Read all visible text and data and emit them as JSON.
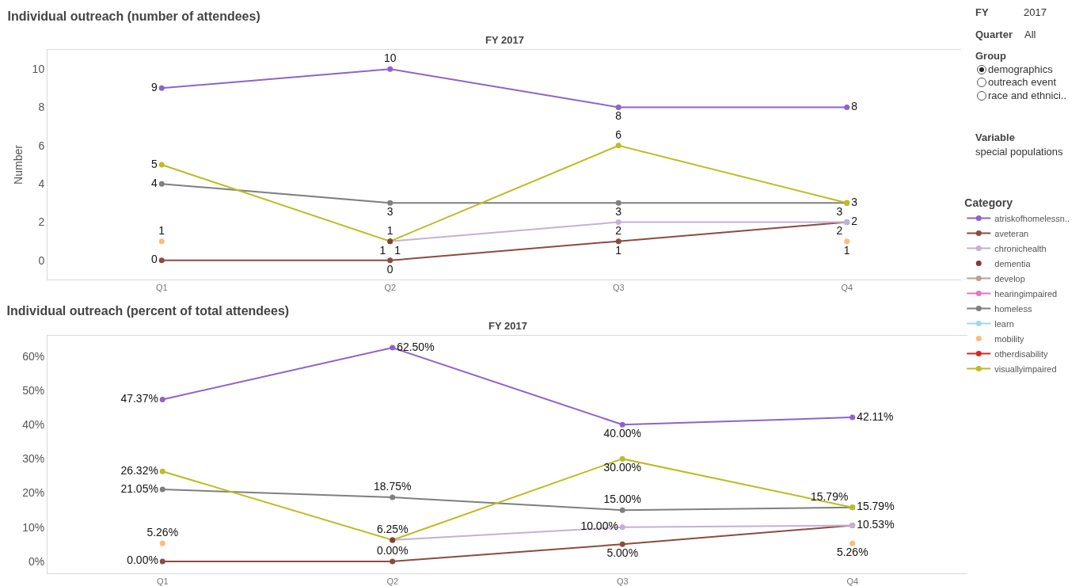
{
  "chart_data": [
    {
      "type": "line",
      "title": "Individual outreach (number of attendees)",
      "subtitle": "FY 2017",
      "ylabel": "Number",
      "legend_title": "Category",
      "categories": [
        "Q1",
        "Q2",
        "Q3",
        "Q4"
      ],
      "ylim": [
        -1,
        11
      ],
      "yticks": [
        0,
        2,
        4,
        6,
        8,
        10
      ],
      "grid": false,
      "legend": "right",
      "marker": "circle",
      "line_style": "solid",
      "data_labels": true,
      "series": [
        {
          "name": "atriskofhomelessn..",
          "color": "#8e63c9",
          "values": [
            9,
            10,
            8,
            8
          ]
        },
        {
          "name": "aveteran",
          "color": "#8c4b3f",
          "values": [
            0,
            0,
            1,
            2
          ]
        },
        {
          "name": "chronichealth",
          "color": "#c5b0d5",
          "values": [
            null,
            1,
            2,
            2
          ]
        },
        {
          "name": "dementia",
          "type": "scatter",
          "color": "#843c39",
          "values": [
            null,
            1,
            null,
            null
          ]
        },
        {
          "name": "develop",
          "color": "#c49c94",
          "values": [
            null,
            null,
            null,
            null
          ]
        },
        {
          "name": "hearingimpaired",
          "color": "#e377c2",
          "values": [
            null,
            null,
            null,
            null
          ]
        },
        {
          "name": "homeless",
          "color": "#7f7f7f",
          "values": [
            4,
            3,
            3,
            3
          ]
        },
        {
          "name": "learn",
          "color": "#9edae5",
          "values": [
            null,
            null,
            null,
            null
          ]
        },
        {
          "name": "mobility",
          "type": "scatter",
          "color": "#ffbb78",
          "values": [
            1,
            null,
            null,
            1
          ]
        },
        {
          "name": "otherdisability",
          "color": "#d62728",
          "values": [
            null,
            null,
            null,
            null
          ]
        },
        {
          "name": "visuallyimpaired",
          "color": "#bcbd22",
          "values": [
            5,
            1,
            6,
            3
          ]
        }
      ]
    },
    {
      "type": "line",
      "title": "Individual outreach (percent of total attendees)",
      "subtitle": "FY 2017",
      "categories": [
        "Q1",
        "Q2",
        "Q3",
        "Q4"
      ],
      "ylim": [
        -3.5,
        66
      ],
      "yticks": [
        {
          "value": 0,
          "label": "0%"
        },
        {
          "value": 10,
          "label": "10%"
        },
        {
          "value": 20,
          "label": "20%"
        },
        {
          "value": 30,
          "label": "30%"
        },
        {
          "value": 40,
          "label": "40%"
        },
        {
          "value": 50,
          "label": "50%"
        },
        {
          "value": 60,
          "label": "60%"
        }
      ],
      "grid": false,
      "marker": "circle",
      "line_style": "solid",
      "series": [
        {
          "color": "#8e63c9",
          "values": [
            47.37,
            62.5,
            40,
            42.11
          ],
          "value_labels": [
            "47.37%",
            "62.50%",
            "40.00%",
            "42.11%"
          ]
        },
        {
          "color": "#8c4b3f",
          "values": [
            0,
            0,
            5,
            10.53
          ],
          "value_labels": [
            "0.00%",
            "0.00%",
            "5.00%",
            "10.53%"
          ]
        },
        {
          "color": "#c5b0d5",
          "values": [
            null,
            6.25,
            10,
            10.53
          ],
          "value_labels": [
            null,
            null,
            "10.00%",
            null
          ]
        },
        {
          "type": "scatter",
          "color": "#843c39",
          "values": [
            null,
            6.25,
            null,
            null
          ],
          "value_labels": [
            null,
            "6.25%",
            null,
            null
          ]
        },
        {
          "color": "#7f7f7f",
          "values": [
            21.05,
            18.75,
            15,
            15.79
          ],
          "value_labels": [
            "21.05%",
            "18.75%",
            "15.00%",
            "15.79%"
          ]
        },
        {
          "type": "scatter",
          "color": "#ffbb78",
          "values": [
            5.26,
            null,
            null,
            5.26
          ],
          "value_labels": [
            "5.26%",
            null,
            null,
            "5.26%"
          ]
        },
        {
          "color": "#bcbd22",
          "values": [
            26.32,
            6.25,
            30,
            15.79
          ],
          "value_labels": [
            "26.32%",
            null,
            "30.00%",
            "15.79%"
          ]
        }
      ]
    },
    {
      "type": "other",
      "annotations": [
        "FY",
        "2017",
        "Quarter",
        "All",
        "Group",
        "demographics",
        "outreach event",
        "race and ethnici..",
        "Variable",
        "special populations"
      ]
    }
  ]
}
